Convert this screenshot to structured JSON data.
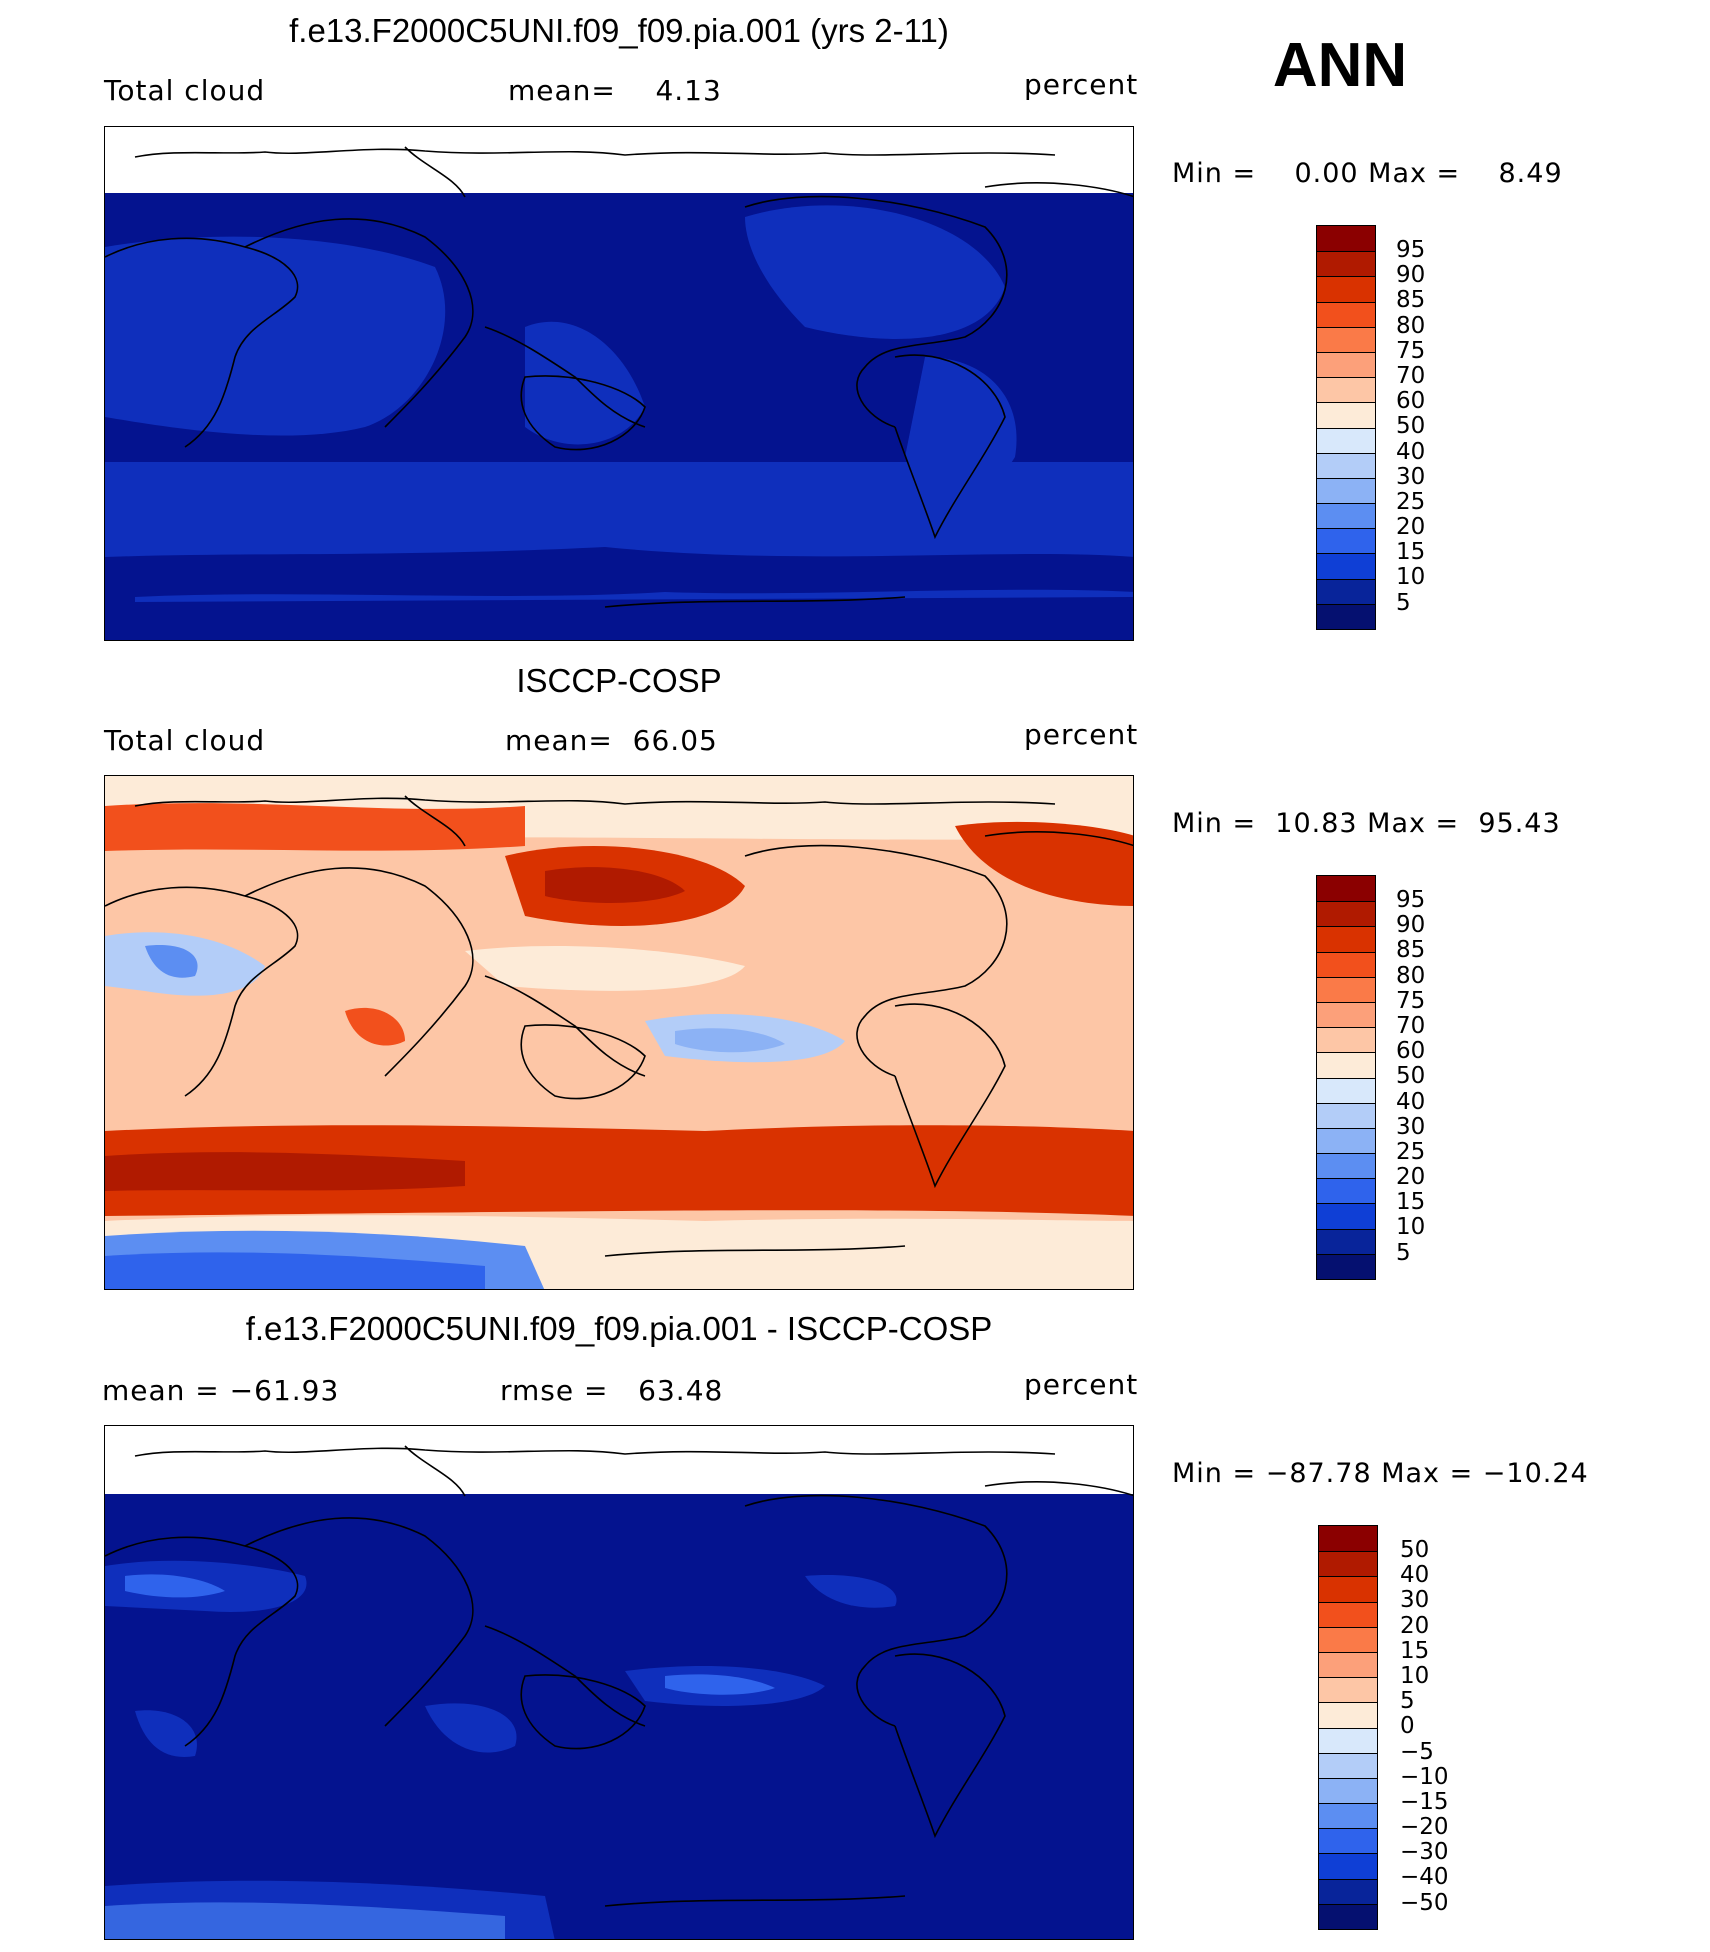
{
  "season": "ANN",
  "panels": [
    {
      "title": "f.e13.F2000C5UNI.f09_f09.pia.001 (yrs 2-11)",
      "left_label": "Total cloud",
      "mid_label": "mean=    4.13",
      "units": "percent",
      "min_max": "Min =    0.00 Max =    8.49",
      "field": "model"
    },
    {
      "title": "ISCCP-COSP",
      "left_label": "Total cloud",
      "mid_label": "mean=  66.05",
      "units": "percent",
      "min_max": "Min =  10.83 Max =  95.43",
      "field": "obs"
    },
    {
      "title": "f.e13.F2000C5UNI.f09_f09.pia.001 - ISCCP-COSP",
      "left_label": "mean = −61.93",
      "mid_label": "rmse =   63.48",
      "units": "percent",
      "min_max": "Min = −87.78 Max = −10.24",
      "field": "diff"
    }
  ],
  "colorbar_levels": {
    "abs": [
      "95",
      "90",
      "85",
      "80",
      "75",
      "70",
      "60",
      "50",
      "40",
      "30",
      "25",
      "20",
      "15",
      "10",
      "5"
    ],
    "diff": [
      "50",
      "40",
      "30",
      "20",
      "15",
      "10",
      "5",
      "0",
      "−5",
      "−10",
      "−15",
      "−20",
      "−30",
      "−40",
      "−50"
    ]
  },
  "colorbar_colors": [
    "#8b0000",
    "#b01a00",
    "#d93200",
    "#f2501c",
    "#fa7a48",
    "#fca07a",
    "#fdc6a6",
    "#fdebd8",
    "#d8e8fb",
    "#b3cdf8",
    "#8cb2f5",
    "#5c8ef2",
    "#2f63ec",
    "#0f3fd6",
    "#08249a",
    "#051070"
  ],
  "map_colors": {
    "white": "#ffffff",
    "deep_blue": "#04138f",
    "mid_blue": "#0f2fbc",
    "light_blue": "#3566e0"
  }
}
